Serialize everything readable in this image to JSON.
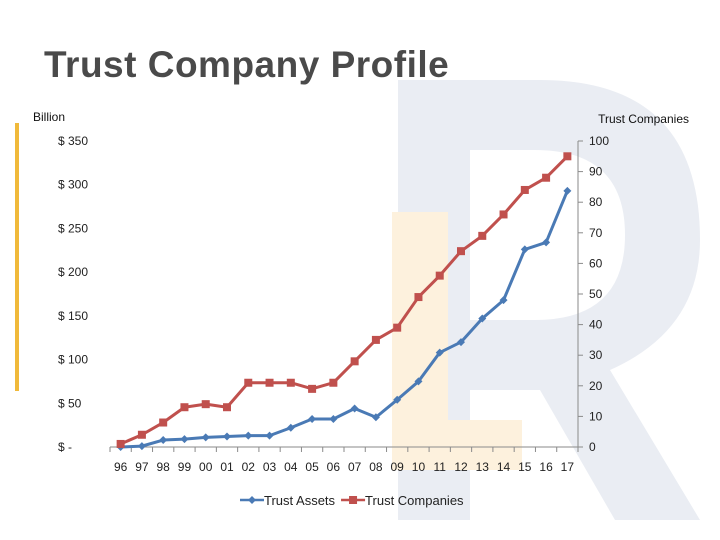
{
  "title": "Trust Company Profile",
  "colors": {
    "trust_assets": "#4a7ab5",
    "trust_companies": "#c0504d",
    "accent": "#f0b93a",
    "watermark_gray": "#eaedf3",
    "watermark_orange": "#fdf1dd"
  },
  "chart_data": {
    "type": "line",
    "title": "",
    "left_axis_unit": "Billion",
    "right_axis_unit": "Trust Companies",
    "categories": [
      "96",
      "97",
      "98",
      "99",
      "00",
      "01",
      "02",
      "03",
      "04",
      "05",
      "06",
      "07",
      "08",
      "09",
      "10",
      "11",
      "12",
      "13",
      "14",
      "15",
      "16",
      "17"
    ],
    "left_ticks": [
      "$ 350",
      "$ 300",
      "$ 250",
      "$ 200",
      "$ 150",
      "$ 100",
      "$ 50",
      "$ -"
    ],
    "right_ticks": [
      "100",
      "90",
      "80",
      "70",
      "60",
      "50",
      "40",
      "30",
      "20",
      "10",
      "0"
    ],
    "ylim_left": [
      0,
      350
    ],
    "ylim_right": [
      0,
      100
    ],
    "series": [
      {
        "name": "Trust Assets",
        "axis": "left",
        "marker": "diamond",
        "values": [
          0,
          1,
          8,
          9,
          11,
          12,
          13,
          13,
          22,
          32,
          32,
          44,
          34,
          54,
          75,
          108,
          120,
          147,
          168,
          226,
          234,
          293
        ]
      },
      {
        "name": "Trust Companies",
        "axis": "right",
        "marker": "square",
        "values": [
          1,
          4,
          8,
          13,
          14,
          13,
          21,
          21,
          21,
          19,
          21,
          28,
          35,
          39,
          49,
          56,
          64,
          69,
          76,
          84,
          88,
          95
        ]
      }
    ],
    "legend_position": "bottom-center",
    "grid": false
  }
}
